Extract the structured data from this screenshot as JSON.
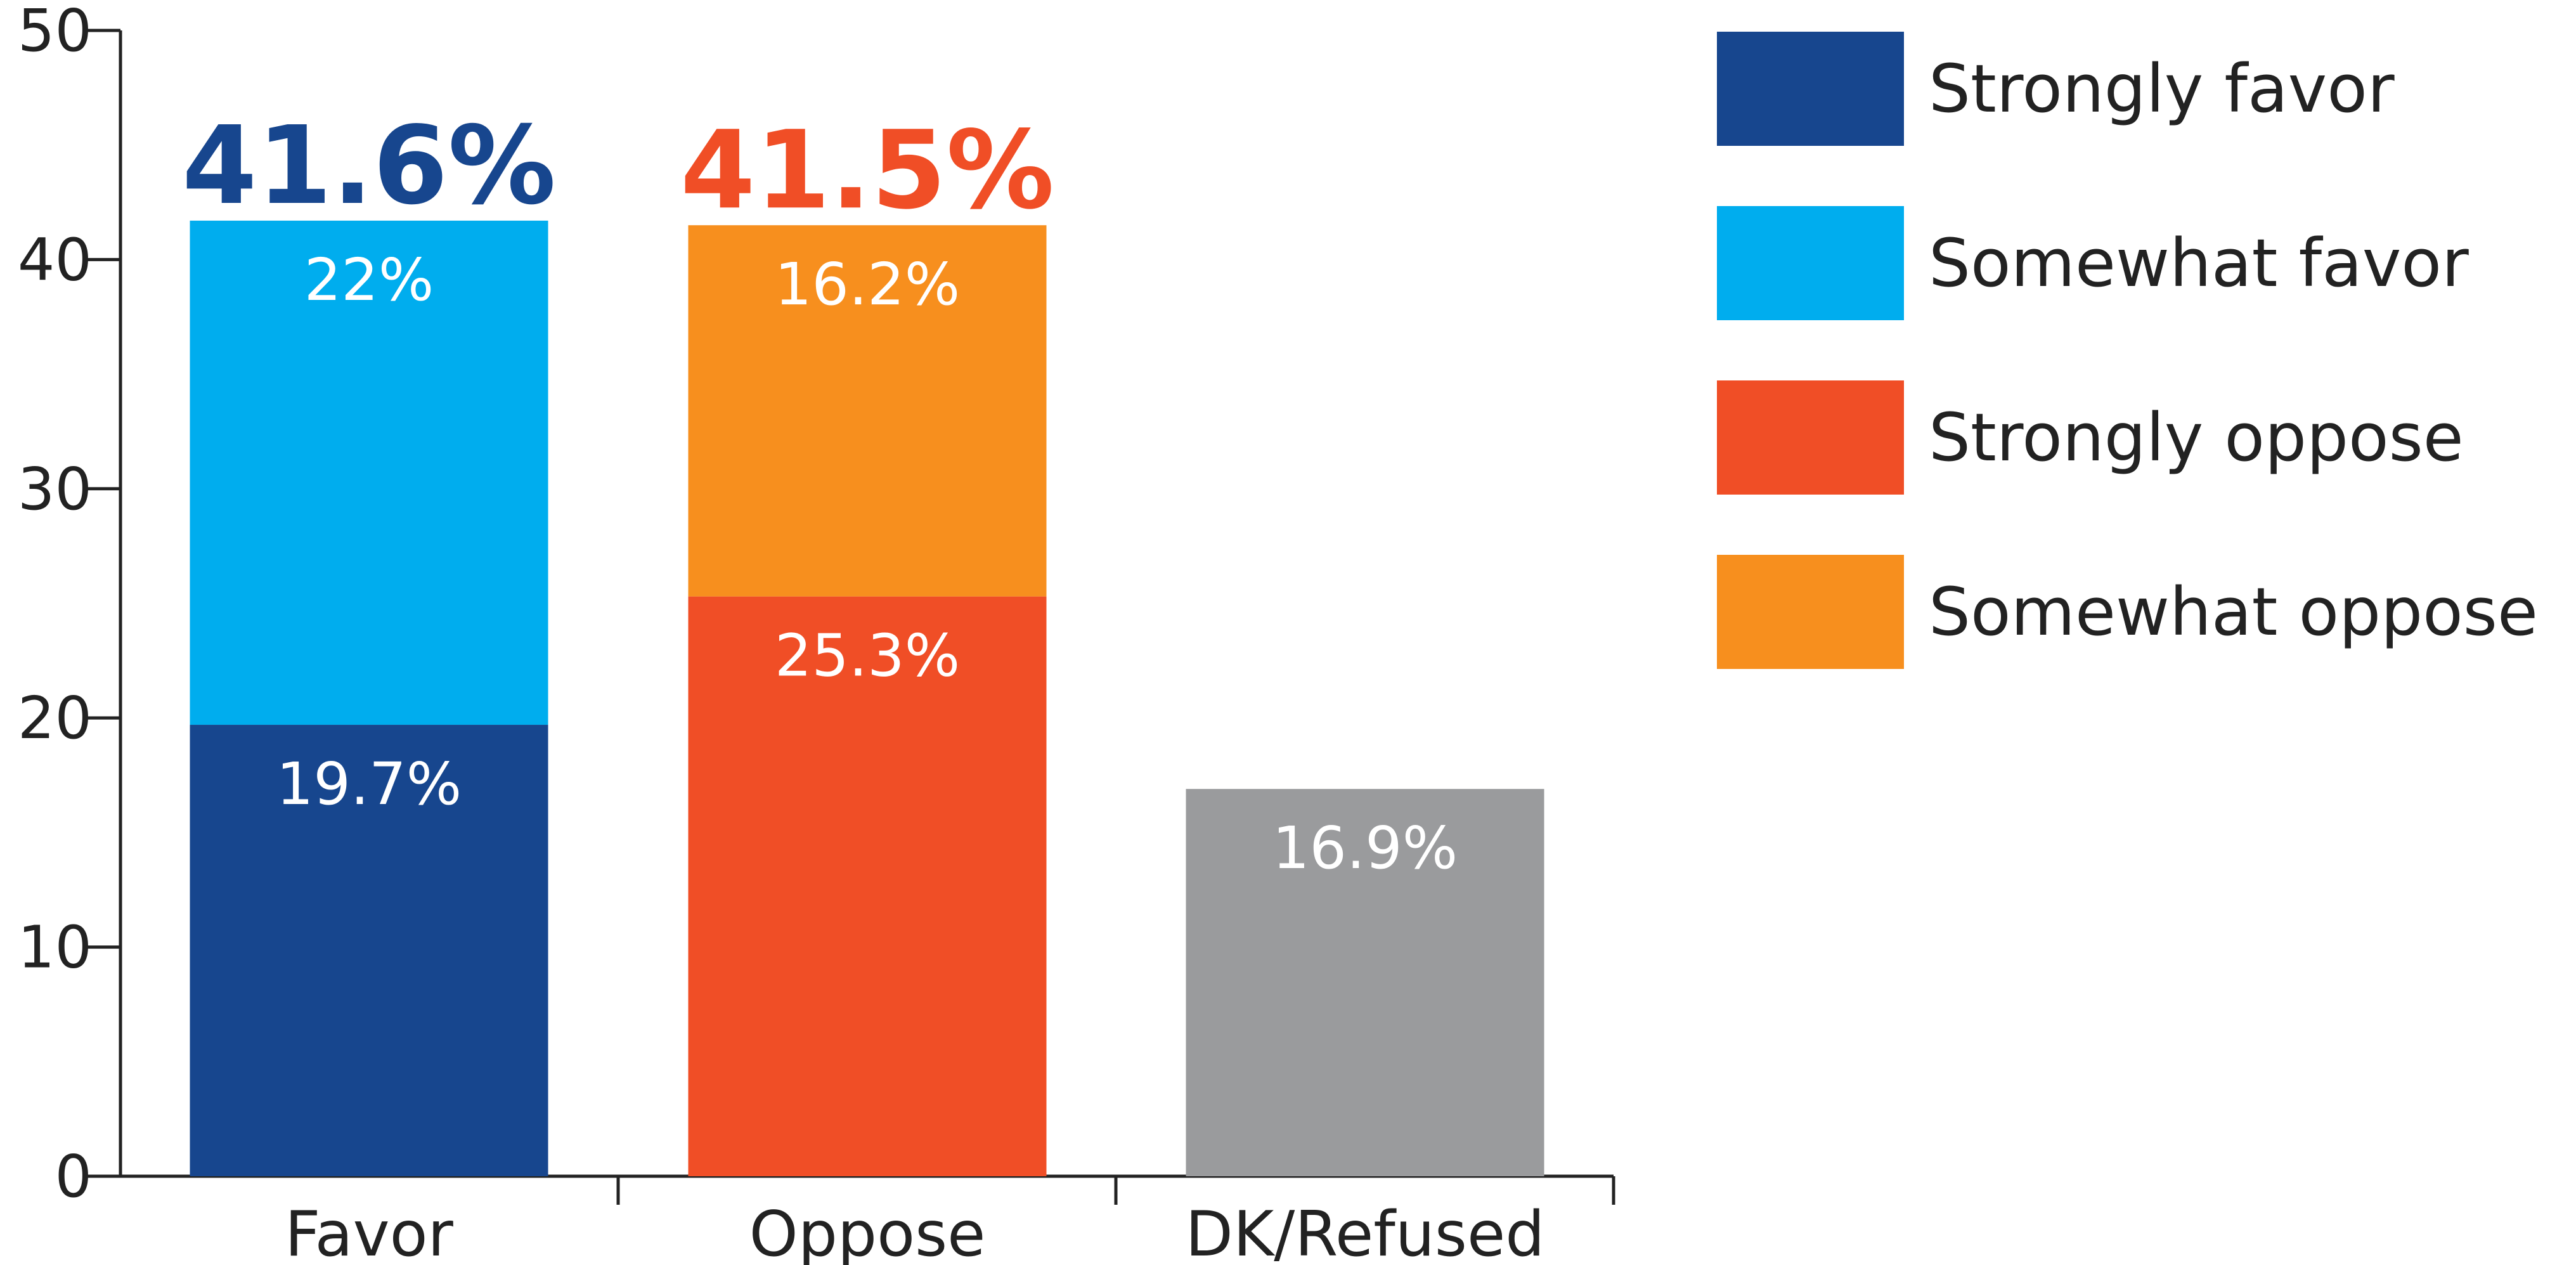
{
  "chart_data": {
    "type": "bar",
    "stacked": true,
    "categories": [
      "Favor",
      "Oppose",
      "DK/Refused"
    ],
    "ylim": [
      0,
      50
    ],
    "yticks": [
      0,
      10,
      20,
      30,
      40,
      50
    ],
    "grid": false,
    "legend_position": "right",
    "bars": [
      {
        "category": "Favor",
        "total_label": "41.6%",
        "total_color": "#17468E",
        "segments": [
          {
            "series": "Strongly favor",
            "value": 19.7,
            "label": "19.7%",
            "color": "#17468E"
          },
          {
            "series": "Somewhat favor",
            "value": 22,
            "label": "22%",
            "color": "#00ADEE"
          }
        ]
      },
      {
        "category": "Oppose",
        "total_label": "41.5%",
        "total_color": "#F04E26",
        "segments": [
          {
            "series": "Strongly oppose",
            "value": 25.3,
            "label": "25.3%",
            "color": "#F04E26"
          },
          {
            "series": "Somewhat oppose",
            "value": 16.2,
            "label": "16.2%",
            "color": "#F78F1E"
          }
        ]
      },
      {
        "category": "DK/Refused",
        "total_label": "",
        "total_color": "",
        "segments": [
          {
            "series": "",
            "value": 16.9,
            "label": "16.9%",
            "color": "#9A9B9D"
          }
        ]
      }
    ],
    "legend": [
      {
        "name": "Strongly favor",
        "color": "#17468E"
      },
      {
        "name": "Somewhat favor",
        "color": "#00ADEE"
      },
      {
        "name": "Strongly oppose",
        "color": "#F04E26"
      },
      {
        "name": "Somewhat oppose",
        "color": "#F78F1E"
      }
    ]
  }
}
